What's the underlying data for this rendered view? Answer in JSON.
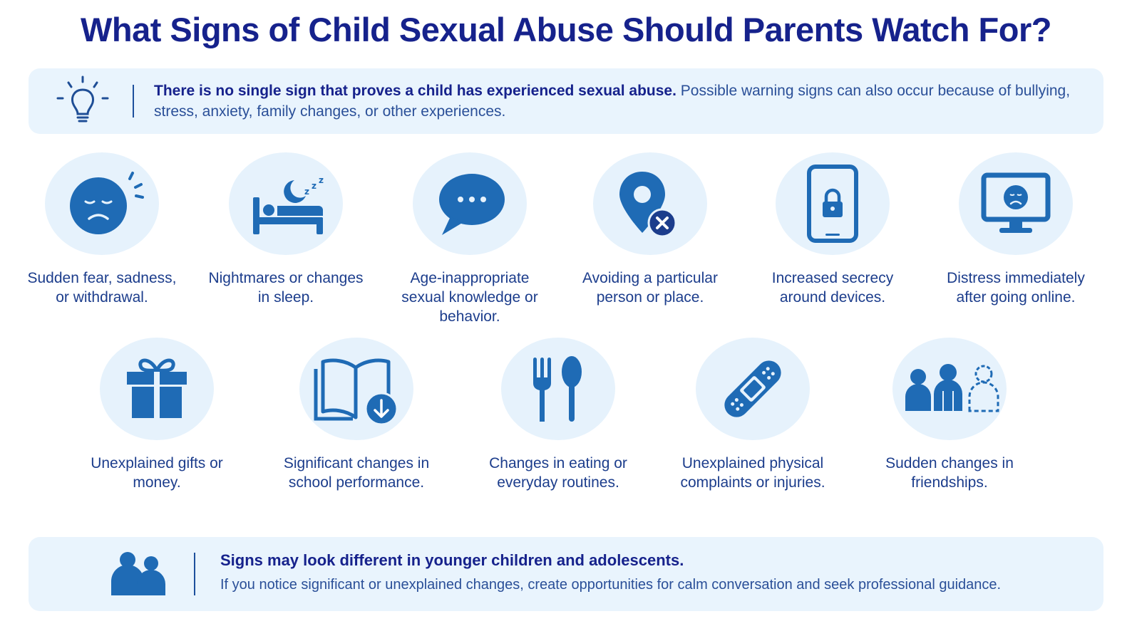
{
  "title": "What Signs of Child Sexual Abuse Should Parents Watch For?",
  "intro": {
    "icon": "lightbulb-icon",
    "bold": "There is no single sign that proves a child has experienced sexual abuse.",
    "text": " Possible warning signs can also occur because of bullying, stress, anxiety, family changes, or other experiences."
  },
  "signs": [
    {
      "icon": "sad-face-icon",
      "label": "Sudden fear, sadness, or withdrawal."
    },
    {
      "icon": "sleeping-bed-icon",
      "label": "Nightmares or changes in sleep."
    },
    {
      "icon": "speech-bubble-icon",
      "label": "Age-inappropriate sexual knowledge or behavior."
    },
    {
      "icon": "location-pin-x-icon",
      "label": "Avoiding a particular person or place."
    },
    {
      "icon": "locked-phone-icon",
      "label": "Increased secrecy around devices."
    },
    {
      "icon": "sad-monitor-icon",
      "label": "Distress immediately after going online."
    },
    {
      "icon": "gift-icon",
      "label": "Unexplained gifts or money."
    },
    {
      "icon": "book-download-icon",
      "label": "Significant changes in school performance."
    },
    {
      "icon": "fork-spoon-icon",
      "label": "Changes in eating or everyday routines."
    },
    {
      "icon": "bandage-icon",
      "label": "Unexplained physical complaints or injuries."
    },
    {
      "icon": "friends-icon",
      "label": "Sudden changes in friendships."
    }
  ],
  "footer": {
    "icon": "parent-child-icon",
    "heading": "Signs may look different in younger children and adolescents.",
    "text": "If you notice significant or unexplained changes, create opportunities for calm conversation and seek professional guidance."
  },
  "colors": {
    "title": "#16228c",
    "icon": "#1f6bb5",
    "banner": "#e9f4fd",
    "circle": "#e6f2fc"
  }
}
